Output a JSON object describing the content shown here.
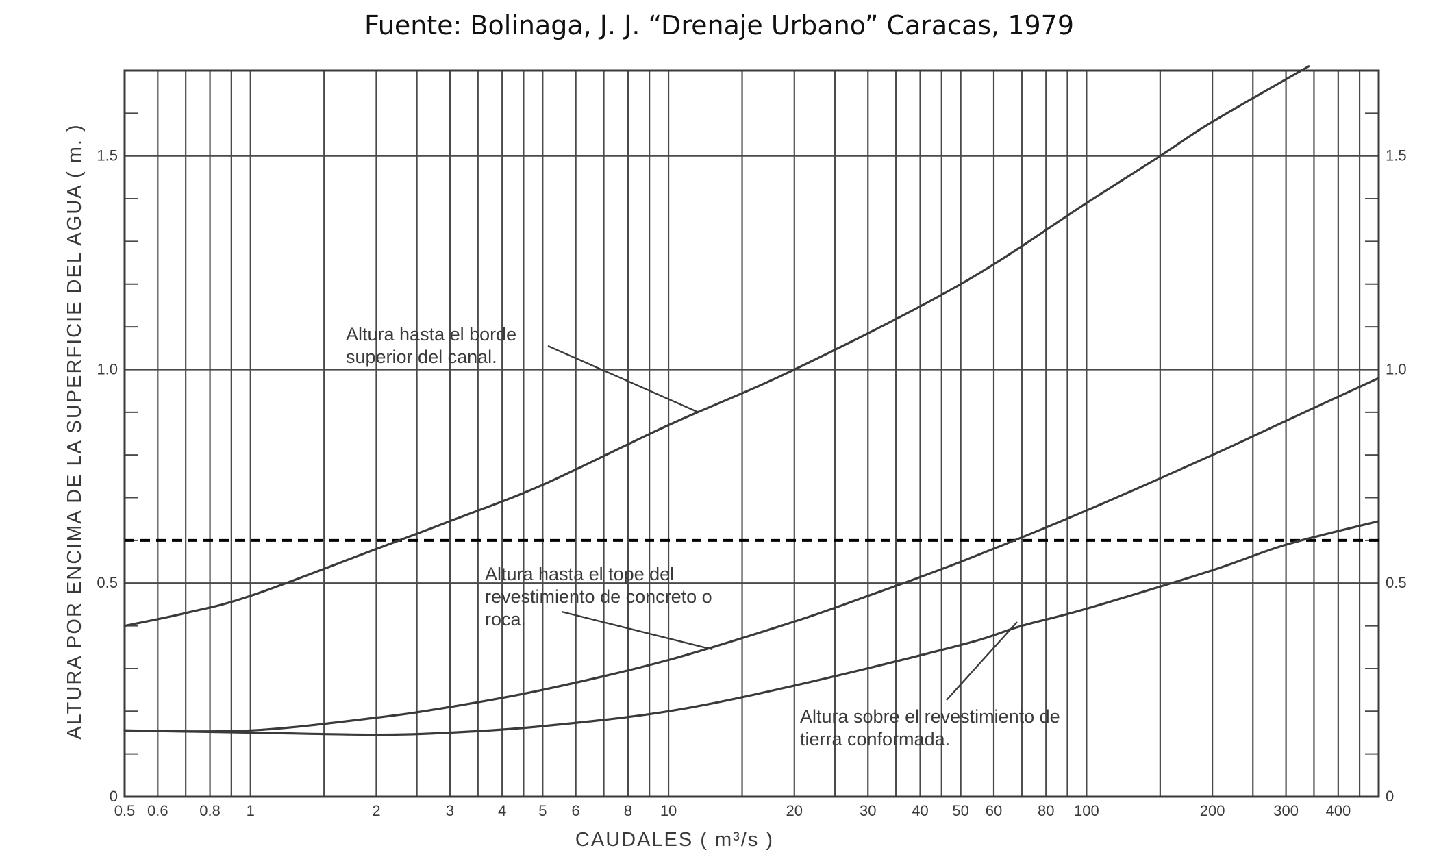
{
  "source_caption": "Fuente: Bolinaga, J. J. “Drenaje  Urbano” Caracas, 1979",
  "chart_data": {
    "type": "line",
    "title": "",
    "xlabel": "CAUDALES  ( m³/s )",
    "ylabel": "ALTURA  POR ENCIMA  DE LA SUPERFICIE  DEL  AGUA  ( m. )",
    "x_scale": "log",
    "xlim": [
      0.5,
      500
    ],
    "ylim": [
      0,
      1.7
    ],
    "grid": true,
    "x_ticks": [
      {
        "value": 0.5,
        "label": "0.5"
      },
      {
        "value": 0.6,
        "label": "0.6"
      },
      {
        "value": 0.8,
        "label": "0.8"
      },
      {
        "value": 1,
        "label": "1"
      },
      {
        "value": 2,
        "label": "2"
      },
      {
        "value": 3,
        "label": "3"
      },
      {
        "value": 4,
        "label": "4"
      },
      {
        "value": 5,
        "label": "5"
      },
      {
        "value": 6,
        "label": "6"
      },
      {
        "value": 8,
        "label": "8"
      },
      {
        "value": 10,
        "label": "10"
      },
      {
        "value": 20,
        "label": "20"
      },
      {
        "value": 30,
        "label": "30"
      },
      {
        "value": 40,
        "label": "40"
      },
      {
        "value": 50,
        "label": "50"
      },
      {
        "value": 60,
        "label": "60"
      },
      {
        "value": 80,
        "label": "80"
      },
      {
        "value": 100,
        "label": "100"
      },
      {
        "value": 200,
        "label": "200"
      },
      {
        "value": 300,
        "label": "300"
      },
      {
        "value": 400,
        "label": "400"
      }
    ],
    "x_gridlines": [
      0.5,
      0.6,
      0.7,
      0.8,
      0.9,
      1,
      1.5,
      2,
      2.5,
      3,
      3.5,
      4,
      4.5,
      5,
      6,
      7,
      8,
      9,
      10,
      15,
      20,
      25,
      30,
      35,
      40,
      45,
      50,
      60,
      70,
      80,
      90,
      100,
      150,
      200,
      250,
      300,
      350,
      400,
      450,
      500
    ],
    "y_ticks_left": [
      {
        "value": 0,
        "label": "0"
      },
      {
        "value": 0.5,
        "label": "0.5"
      },
      {
        "value": 1.0,
        "label": "1.0"
      },
      {
        "value": 1.5,
        "label": "1.5"
      }
    ],
    "y_ticks_right": [
      {
        "value": 0,
        "label": "0"
      },
      {
        "value": 0.5,
        "label": "0.5"
      },
      {
        "value": 1.0,
        "label": "1.0"
      },
      {
        "value": 1.5,
        "label": "1.5"
      }
    ],
    "y_major_gridlines": [
      0.5,
      1.0,
      1.5
    ],
    "y_minor_ticks": [
      0.1,
      0.2,
      0.3,
      0.4,
      0.6,
      0.7,
      0.8,
      0.9,
      1.1,
      1.2,
      1.3,
      1.4,
      1.6
    ],
    "reference_line": {
      "y": 0.6,
      "style": "dashed",
      "color": "#000000"
    },
    "series": [
      {
        "name": "Altura hasta el borde superior del canal",
        "x": [
          0.5,
          0.7,
          1,
          2,
          3,
          5,
          10,
          20,
          50,
          100,
          150,
          200,
          340
        ],
        "y": [
          0.4,
          0.43,
          0.47,
          0.58,
          0.645,
          0.73,
          0.87,
          1.0,
          1.2,
          1.39,
          1.5,
          1.58,
          1.71
        ]
      },
      {
        "name": "Altura hasta el tope del revestimiento de concreto o roca",
        "x": [
          0.5,
          1,
          2,
          3,
          5,
          10,
          20,
          30,
          50,
          100,
          200,
          300,
          500
        ],
        "y": [
          0.155,
          0.155,
          0.185,
          0.21,
          0.25,
          0.32,
          0.41,
          0.47,
          0.55,
          0.67,
          0.8,
          0.88,
          0.98
        ]
      },
      {
        "name": "Altura sobre el revestimiento de tierra conformada",
        "x": [
          0.5,
          1,
          2,
          3,
          5,
          10,
          20,
          50,
          70,
          100,
          200,
          300,
          500
        ],
        "y": [
          0.155,
          0.15,
          0.145,
          0.15,
          0.165,
          0.2,
          0.26,
          0.355,
          0.4,
          0.44,
          0.53,
          0.59,
          0.645
        ]
      }
    ],
    "annotations": [
      {
        "lines": [
          "Altura  hasta  el  borde",
          "superior  del  canal."
        ],
        "series_index": 0
      },
      {
        "lines": [
          "Altura  hasta  el  tope  del",
          "revestimiento  de concreto  o",
          "roca."
        ],
        "series_index": 1
      },
      {
        "lines": [
          "Altura  sobre  el  revestimiento  de",
          "tierra  conformada."
        ],
        "series_index": 2
      }
    ]
  },
  "colors": {
    "ink": "#3a3a3a",
    "grid": "#4a4a4a",
    "reference": "#000000",
    "background": "#ffffff"
  }
}
